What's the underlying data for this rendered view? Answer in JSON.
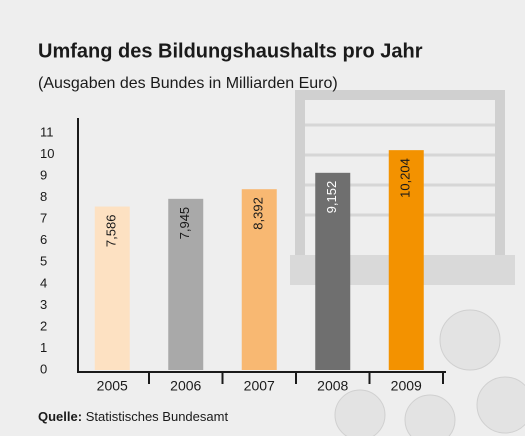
{
  "chart_data": {
    "type": "bar",
    "title": "Umfang des Bildungshaushalts pro Jahr",
    "subtitle": "(Ausgaben des Bundes in Milliarden Euro)",
    "categories": [
      "2005",
      "2006",
      "2007",
      "2008",
      "2009"
    ],
    "values": [
      7.586,
      7.945,
      8.392,
      9.152,
      10.204
    ],
    "value_labels": [
      "7,586",
      "7,945",
      "8,392",
      "9,152",
      "10,204"
    ],
    "colors": [
      "#fde1c2",
      "#a9a9a9",
      "#f8b872",
      "#6f6f6f",
      "#f39200"
    ],
    "ylim": [
      0,
      11
    ],
    "yticks": [
      0,
      1,
      2,
      3,
      4,
      5,
      6,
      7,
      8,
      9,
      10,
      11
    ],
    "grid": false,
    "source_label": "Quelle:",
    "source": "Statistisches Bundesamt"
  }
}
